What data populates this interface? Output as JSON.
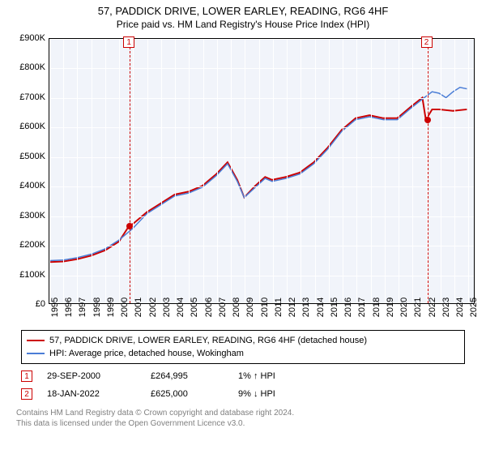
{
  "title": "57, PADDICK DRIVE, LOWER EARLEY, READING, RG6 4HF",
  "subtitle": "Price paid vs. HM Land Registry's House Price Index (HPI)",
  "chart": {
    "type": "line",
    "background_color": "#ffffff",
    "plot_bg_color": "#f1f4fa",
    "grid_color": "#ffffff",
    "axis_color": "#000000",
    "label_fontsize": 11,
    "y": {
      "min": 0,
      "max": 900000,
      "step": 100000,
      "prefix": "£",
      "suffix": "K",
      "ticks": [
        0,
        100000,
        200000,
        300000,
        400000,
        500000,
        600000,
        700000,
        800000,
        900000
      ],
      "labels": [
        "£0",
        "£100K",
        "£200K",
        "£300K",
        "£400K",
        "£500K",
        "£600K",
        "£700K",
        "£800K",
        "£900K"
      ]
    },
    "x": {
      "min": 1995,
      "max": 2025.5,
      "ticks": [
        1995,
        1996,
        1997,
        1998,
        1999,
        2000,
        2001,
        2002,
        2003,
        2004,
        2005,
        2006,
        2007,
        2008,
        2009,
        2010,
        2011,
        2012,
        2013,
        2014,
        2015,
        2016,
        2017,
        2018,
        2019,
        2020,
        2021,
        2022,
        2023,
        2024,
        2025
      ]
    },
    "series": [
      {
        "name": "57, PADDICK DRIVE, LOWER EARLEY, READING, RG6 4HF (detached house)",
        "color": "#cc0000",
        "width": 2,
        "data": [
          [
            1995,
            140000
          ],
          [
            1996,
            142000
          ],
          [
            1997,
            150000
          ],
          [
            1998,
            162000
          ],
          [
            1999,
            180000
          ],
          [
            2000,
            210000
          ],
          [
            2000.75,
            264995
          ],
          [
            2001,
            270000
          ],
          [
            2002,
            310000
          ],
          [
            2003,
            340000
          ],
          [
            2004,
            370000
          ],
          [
            2005,
            380000
          ],
          [
            2006,
            400000
          ],
          [
            2007,
            440000
          ],
          [
            2007.8,
            480000
          ],
          [
            2008.5,
            420000
          ],
          [
            2009,
            360000
          ],
          [
            2009.8,
            400000
          ],
          [
            2010.5,
            430000
          ],
          [
            2011,
            420000
          ],
          [
            2012,
            430000
          ],
          [
            2013,
            445000
          ],
          [
            2014,
            480000
          ],
          [
            2015,
            530000
          ],
          [
            2016,
            590000
          ],
          [
            2017,
            630000
          ],
          [
            2018,
            640000
          ],
          [
            2019,
            630000
          ],
          [
            2020,
            630000
          ],
          [
            2021,
            670000
          ],
          [
            2021.8,
            700000
          ],
          [
            2022.05,
            625000
          ],
          [
            2022.5,
            660000
          ],
          [
            2023,
            660000
          ],
          [
            2024,
            655000
          ],
          [
            2025,
            660000
          ]
        ]
      },
      {
        "name": "HPI: Average price, detached house, Wokingham",
        "color": "#4a7dd6",
        "width": 1.5,
        "data": [
          [
            1995,
            145000
          ],
          [
            1996,
            147000
          ],
          [
            1997,
            155000
          ],
          [
            1998,
            167000
          ],
          [
            1999,
            185000
          ],
          [
            2000,
            215000
          ],
          [
            2001,
            255000
          ],
          [
            2002,
            305000
          ],
          [
            2003,
            335000
          ],
          [
            2004,
            365000
          ],
          [
            2005,
            375000
          ],
          [
            2006,
            395000
          ],
          [
            2007,
            435000
          ],
          [
            2007.8,
            475000
          ],
          [
            2008.5,
            415000
          ],
          [
            2009,
            360000
          ],
          [
            2009.8,
            395000
          ],
          [
            2010.5,
            425000
          ],
          [
            2011,
            415000
          ],
          [
            2012,
            425000
          ],
          [
            2013,
            440000
          ],
          [
            2014,
            475000
          ],
          [
            2015,
            525000
          ],
          [
            2016,
            585000
          ],
          [
            2017,
            625000
          ],
          [
            2018,
            635000
          ],
          [
            2019,
            625000
          ],
          [
            2020,
            625000
          ],
          [
            2021,
            665000
          ],
          [
            2021.8,
            695000
          ],
          [
            2022.5,
            720000
          ],
          [
            2023,
            715000
          ],
          [
            2023.5,
            700000
          ],
          [
            2024,
            720000
          ],
          [
            2024.5,
            735000
          ],
          [
            2025,
            730000
          ]
        ]
      }
    ],
    "markers": [
      {
        "n": 1,
        "x": 2000.75,
        "y": 264995,
        "color": "#cc0000",
        "line_color": "#cc0000"
      },
      {
        "n": 2,
        "x": 2022.05,
        "y": 625000,
        "color": "#cc0000",
        "line_color": "#cc0000"
      }
    ]
  },
  "legend": {
    "items": [
      {
        "label": "57, PADDICK DRIVE, LOWER EARLEY, READING, RG6 4HF (detached house)",
        "color": "#cc0000"
      },
      {
        "label": "HPI: Average price, detached house, Wokingham",
        "color": "#4a7dd6"
      }
    ]
  },
  "transactions": [
    {
      "n": 1,
      "date": "29-SEP-2000",
      "price": "£264,995",
      "diff": "1% ↑ HPI",
      "box_color": "#cc0000"
    },
    {
      "n": 2,
      "date": "18-JAN-2022",
      "price": "£625,000",
      "diff": "9% ↓ HPI",
      "box_color": "#cc0000"
    }
  ],
  "credits": {
    "line1": "Contains HM Land Registry data © Crown copyright and database right 2024.",
    "line2": "This data is licensed under the Open Government Licence v3.0.",
    "color": "#808080"
  }
}
